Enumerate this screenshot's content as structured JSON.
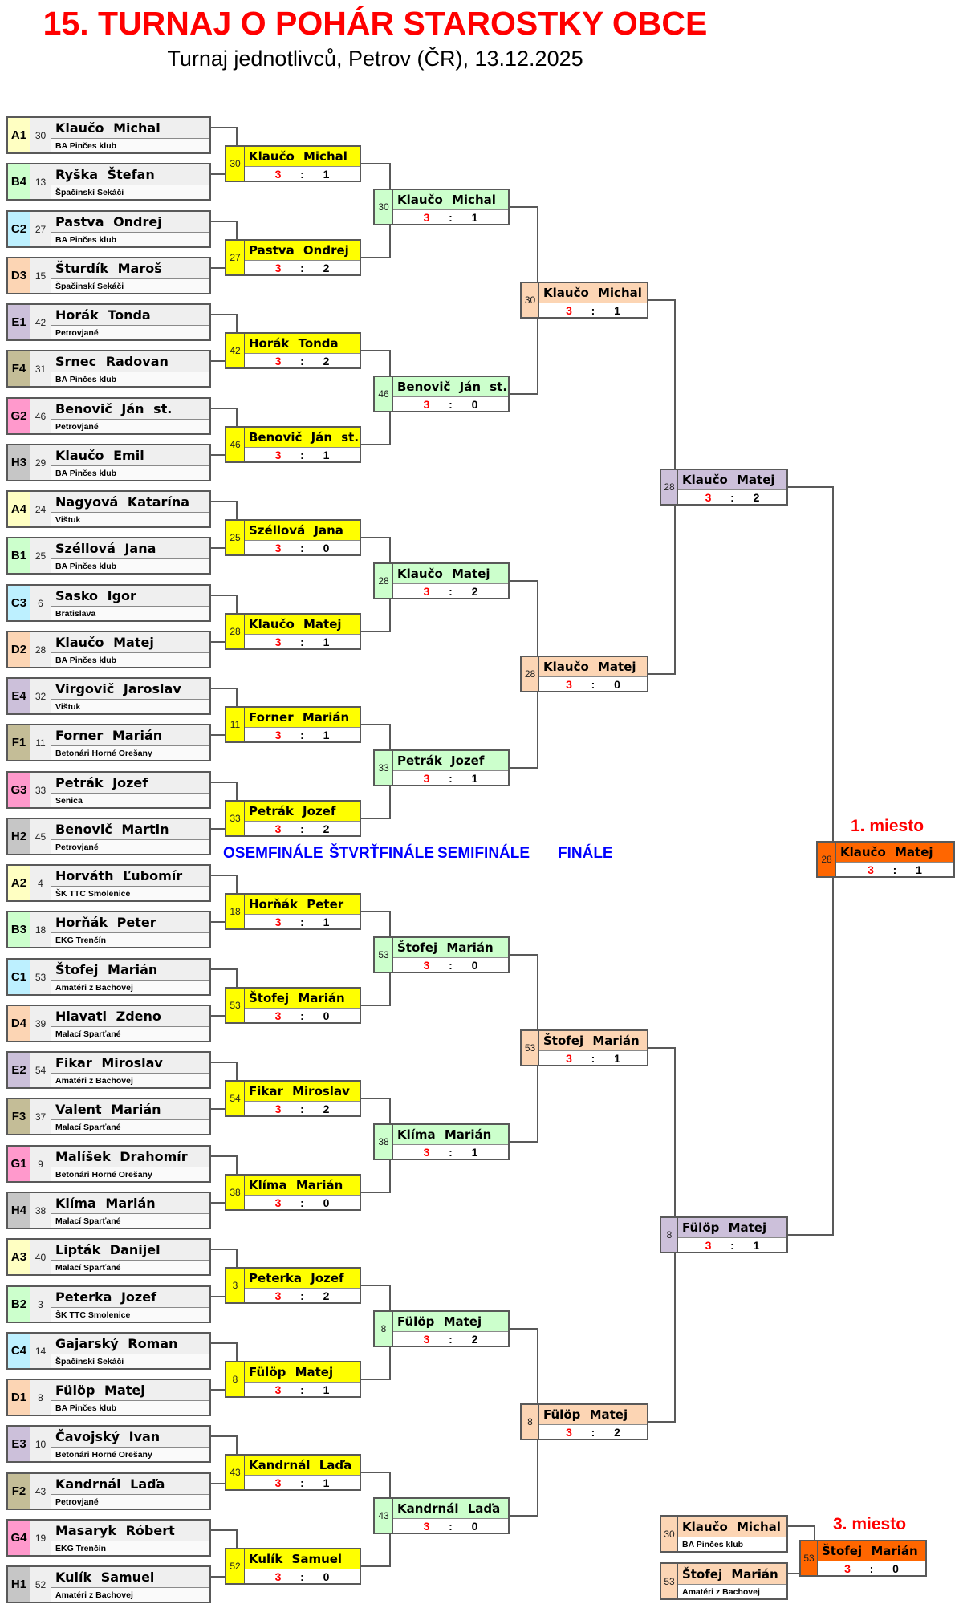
{
  "header": {
    "title": "15. TURNAJ O POHÁR STAROSTKY OBCE",
    "subtitle": "Turnaj jednotlivců, Petrov (ČR), 13.12.2025"
  },
  "round_labels": [
    "OSEMFINÁLE",
    "ŠTVRŤFINÁLE",
    "SEMIFINÁLE",
    "FINÁLE"
  ],
  "first_place_label": "1. miesto",
  "third_place_label": "3. miesto",
  "score_separator": ":",
  "group_colors": {
    "A": "#ffffc2",
    "B": "#ccffcc",
    "C": "#bdf0ff",
    "D": "#fcd5b4",
    "E": "#ccc0da",
    "F": "#c4bd97",
    "G": "#ff99cc",
    "H": "#c6c6c6"
  },
  "round_colors": {
    "r16": "#ffff00",
    "qf": "#ccffcc",
    "sf": "#fcd5b4",
    "final": "#ccc0da",
    "winner": "#ff6600"
  },
  "players": [
    {
      "group": "A1",
      "seed": "30",
      "name": "Klaučo Michal",
      "club": "BA Pinčes klub",
      "color": "A"
    },
    {
      "group": "B4",
      "seed": "13",
      "name": "Ryška Štefan",
      "club": "Špačinskí Sekáči",
      "color": "B"
    },
    {
      "group": "C2",
      "seed": "27",
      "name": "Pastva Ondrej",
      "club": "BA Pinčes klub",
      "color": "C"
    },
    {
      "group": "D3",
      "seed": "15",
      "name": "Šturdík Maroš",
      "club": "Špačinskí Sekáči",
      "color": "D"
    },
    {
      "group": "E1",
      "seed": "42",
      "name": "Horák Tonda",
      "club": "Petrovjané",
      "color": "E"
    },
    {
      "group": "F4",
      "seed": "31",
      "name": "Srnec Radovan",
      "club": "BA Pinčes klub",
      "color": "F"
    },
    {
      "group": "G2",
      "seed": "46",
      "name": "Benovič Ján st.",
      "club": "Petrovjané",
      "color": "G"
    },
    {
      "group": "H3",
      "seed": "29",
      "name": "Klaučo Emil",
      "club": "BA Pinčes klub",
      "color": "H"
    },
    {
      "group": "A4",
      "seed": "24",
      "name": "Nagyová Katarína",
      "club": "Vištuk",
      "color": "A"
    },
    {
      "group": "B1",
      "seed": "25",
      "name": "Széllová Jana",
      "club": "BA Pinčes klub",
      "color": "B"
    },
    {
      "group": "C3",
      "seed": "6",
      "name": "Sasko Igor",
      "club": "Bratislava",
      "color": "C"
    },
    {
      "group": "D2",
      "seed": "28",
      "name": "Klaučo Matej",
      "club": "BA Pinčes klub",
      "color": "D"
    },
    {
      "group": "E4",
      "seed": "32",
      "name": "Virgovič Jaroslav",
      "club": "Vištuk",
      "color": "E"
    },
    {
      "group": "F1",
      "seed": "11",
      "name": "Forner Marián",
      "club": "Betonári Horné Orešany",
      "color": "F"
    },
    {
      "group": "G3",
      "seed": "33",
      "name": "Petrák Jozef",
      "club": "Senica",
      "color": "G"
    },
    {
      "group": "H2",
      "seed": "45",
      "name": "Benovič Martin",
      "club": "Petrovjané",
      "color": "H"
    },
    {
      "group": "A2",
      "seed": "4",
      "name": "Horváth Ľubomír",
      "club": "ŠK TTC Smolenice",
      "color": "A"
    },
    {
      "group": "B3",
      "seed": "18",
      "name": "Horňák Peter",
      "club": "EKG Trenčín",
      "color": "B"
    },
    {
      "group": "C1",
      "seed": "53",
      "name": "Štofej Marián",
      "club": "Amatéri z Bachovej",
      "color": "C"
    },
    {
      "group": "D4",
      "seed": "39",
      "name": "Hlavati Zdeno",
      "club": "Malací Sparťané",
      "color": "D"
    },
    {
      "group": "E2",
      "seed": "54",
      "name": "Fikar Miroslav",
      "club": "Amatéri z Bachovej",
      "color": "E"
    },
    {
      "group": "F3",
      "seed": "37",
      "name": "Valent Marián",
      "club": "Malací Sparťané",
      "color": "F"
    },
    {
      "group": "G1",
      "seed": "9",
      "name": "Malíšek Drahomír",
      "club": "Betonári Horné Orešany",
      "color": "G"
    },
    {
      "group": "H4",
      "seed": "38",
      "name": "Klíma Marián",
      "club": "Malací Sparťané",
      "color": "H"
    },
    {
      "group": "A3",
      "seed": "40",
      "name": "Lipták Danijel",
      "club": "Malací Sparťané",
      "color": "A"
    },
    {
      "group": "B2",
      "seed": "3",
      "name": "Peterka Jozef",
      "club": "ŠK TTC Smolenice",
      "color": "B"
    },
    {
      "group": "C4",
      "seed": "14",
      "name": "Gajarský Roman",
      "club": "Špačinskí Sekáči",
      "color": "C"
    },
    {
      "group": "D1",
      "seed": "8",
      "name": "Fülöp Matej",
      "club": "BA Pinčes klub",
      "color": "D"
    },
    {
      "group": "E3",
      "seed": "10",
      "name": "Čavojský Ivan",
      "club": "Betonári Horné Orešany",
      "color": "E"
    },
    {
      "group": "F2",
      "seed": "43",
      "name": "Kandrnál Laďa",
      "club": "Petrovjané",
      "color": "F"
    },
    {
      "group": "G4",
      "seed": "19",
      "name": "Masaryk Róbert",
      "club": "EKG Trenčín",
      "color": "G"
    },
    {
      "group": "H1",
      "seed": "52",
      "name": "Kulík Samuel",
      "club": "Amatéri z Bachovej",
      "color": "H"
    }
  ],
  "r16": [
    {
      "seed": "30",
      "name": "Klaučo Michal",
      "s1": "3",
      "s2": "1"
    },
    {
      "seed": "27",
      "name": "Pastva Ondrej",
      "s1": "3",
      "s2": "2"
    },
    {
      "seed": "42",
      "name": "Horák Tonda",
      "s1": "3",
      "s2": "2"
    },
    {
      "seed": "46",
      "name": "Benovič Ján st.",
      "s1": "3",
      "s2": "1"
    },
    {
      "seed": "25",
      "name": "Széllová Jana",
      "s1": "3",
      "s2": "0"
    },
    {
      "seed": "28",
      "name": "Klaučo Matej",
      "s1": "3",
      "s2": "1"
    },
    {
      "seed": "11",
      "name": "Forner Marián",
      "s1": "3",
      "s2": "1"
    },
    {
      "seed": "33",
      "name": "Petrák Jozef",
      "s1": "3",
      "s2": "2"
    },
    {
      "seed": "18",
      "name": "Horňák Peter",
      "s1": "3",
      "s2": "1"
    },
    {
      "seed": "53",
      "name": "Štofej Marián",
      "s1": "3",
      "s2": "0"
    },
    {
      "seed": "54",
      "name": "Fikar Miroslav",
      "s1": "3",
      "s2": "2"
    },
    {
      "seed": "38",
      "name": "Klíma Marián",
      "s1": "3",
      "s2": "0"
    },
    {
      "seed": "3",
      "name": "Peterka Jozef",
      "s1": "3",
      "s2": "2"
    },
    {
      "seed": "8",
      "name": "Fülöp Matej",
      "s1": "3",
      "s2": "1"
    },
    {
      "seed": "43",
      "name": "Kandrnál Laďa",
      "s1": "3",
      "s2": "1"
    },
    {
      "seed": "52",
      "name": "Kulík Samuel",
      "s1": "3",
      "s2": "0"
    }
  ],
  "qf": [
    {
      "seed": "30",
      "name": "Klaučo Michal",
      "s1": "3",
      "s2": "1"
    },
    {
      "seed": "46",
      "name": "Benovič Ján st.",
      "s1": "3",
      "s2": "0"
    },
    {
      "seed": "28",
      "name": "Klaučo Matej",
      "s1": "3",
      "s2": "2"
    },
    {
      "seed": "33",
      "name": "Petrák Jozef",
      "s1": "3",
      "s2": "1"
    },
    {
      "seed": "53",
      "name": "Štofej Marián",
      "s1": "3",
      "s2": "0"
    },
    {
      "seed": "38",
      "name": "Klíma Marián",
      "s1": "3",
      "s2": "1"
    },
    {
      "seed": "8",
      "name": "Fülöp Matej",
      "s1": "3",
      "s2": "2"
    },
    {
      "seed": "43",
      "name": "Kandrnál Laďa",
      "s1": "3",
      "s2": "0"
    }
  ],
  "sf": [
    {
      "seed": "30",
      "name": "Klaučo Michal",
      "s1": "3",
      "s2": "1"
    },
    {
      "seed": "28",
      "name": "Klaučo Matej",
      "s1": "3",
      "s2": "0"
    },
    {
      "seed": "53",
      "name": "Štofej Marián",
      "s1": "3",
      "s2": "1"
    },
    {
      "seed": "8",
      "name": "Fülöp Matej",
      "s1": "3",
      "s2": "2"
    }
  ],
  "final": [
    {
      "seed": "28",
      "name": "Klaučo Matej",
      "s1": "3",
      "s2": "2"
    },
    {
      "seed": "8",
      "name": "Fülöp Matej",
      "s1": "3",
      "s2": "1"
    }
  ],
  "champion": {
    "seed": "28",
    "name": "Klaučo Matej",
    "s1": "3",
    "s2": "1"
  },
  "third_place": {
    "participants": [
      {
        "seed": "30",
        "name": "Klaučo Michal",
        "club": "BA Pinčes klub"
      },
      {
        "seed": "53",
        "name": "Štofej Marián",
        "club": "Amatéri z Bachovej"
      }
    ],
    "winner": {
      "seed": "53",
      "name": "Štofej Marián",
      "s1": "3",
      "s2": "0"
    }
  }
}
